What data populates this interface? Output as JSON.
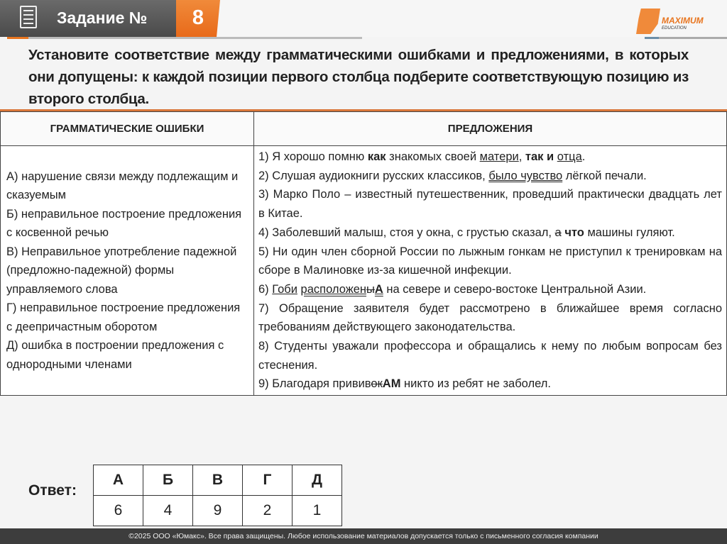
{
  "header": {
    "title": "Задание №",
    "number": "8",
    "logo_text": "MAXIMUM",
    "logo_sub": "EDUCATION",
    "accent": "#e8751f"
  },
  "task": "Установите соответствие между грамматическими ошибками и предложениями, в которых они допущены: к каждой позиции первого столбца подберите соответствующую позицию из второго столбца.",
  "table": {
    "headers": [
      "ГРАММАТИЧЕСКИЕ ОШИБКИ",
      "ПРЕДЛОЖЕНИЯ"
    ],
    "errors": [
      "А) нарушение связи между подлежащим и сказуемым",
      "Б) неправильное построение предложения с косвенной речью",
      "В) Неправильное употребление падежной (предложно-падежной) формы управляемого слова",
      "Г) неправильное построение предложения с деепричастным оборотом",
      "Д) ошибка в построении предложения с однородными членами"
    ],
    "sentences": [
      [
        [
          "1) Я хорошо помню ",
          ""
        ],
        [
          "как",
          "b"
        ],
        [
          " знакомых своей ",
          ""
        ],
        [
          "матери",
          "u"
        ],
        [
          ", ",
          ""
        ],
        [
          "так и",
          "b"
        ],
        [
          " ",
          ""
        ],
        [
          "отца",
          "u"
        ],
        [
          ".",
          ""
        ]
      ],
      [
        [
          "2) Слушая аудиокниги русских классиков, ",
          ""
        ],
        [
          "было чувство",
          "uu"
        ],
        [
          " лёгкой печали.",
          ""
        ]
      ],
      [
        [
          "3) Марко Поло – известный путешественник, проведший практически двадцать лет в Китае.",
          ""
        ]
      ],
      [
        [
          "4) Заболевший малыш, стоя у окна, с грустью сказал, ",
          ""
        ],
        [
          "а",
          "s"
        ],
        [
          " ",
          ""
        ],
        [
          "что",
          "b"
        ],
        [
          " машины гуляют.",
          ""
        ]
      ],
      [
        [
          "5) Ни один член сборной России по лыжным гонкам не приступил к тренировкам на сборе в Малиновке из-за кишечной инфекции.",
          ""
        ]
      ],
      [
        [
          "6) ",
          ""
        ],
        [
          "Гоби",
          "u"
        ],
        [
          " ",
          ""
        ],
        [
          "расположен",
          "uu"
        ],
        [
          "ы",
          "uu s"
        ],
        [
          "А",
          "uu b"
        ],
        [
          " на севере и северо-востоке Центральной Азии.",
          ""
        ]
      ],
      [
        [
          "7) Обращение заявителя будет рассмотрено в ближайшее время согласно требованиям действующего законодательства.",
          ""
        ]
      ],
      [
        [
          "8) Студенты уважали профессора и обращались к нему по любым вопросам без стеснения.",
          ""
        ]
      ],
      [
        [
          "9) Благодаря привив",
          ""
        ],
        [
          "ок",
          "s"
        ],
        [
          "АМ",
          "b"
        ],
        [
          " никто из ребят не заболел.",
          ""
        ]
      ]
    ]
  },
  "answer": {
    "label": "Ответ:",
    "letters": [
      "А",
      "Б",
      "В",
      "Г",
      "Д"
    ],
    "values": [
      "6",
      "4",
      "9",
      "2",
      "1"
    ]
  },
  "footer": "©2025 ООО «Юмакс». Все права защищены. Любое использование материалов допускается только с  письменного согласия компании"
}
